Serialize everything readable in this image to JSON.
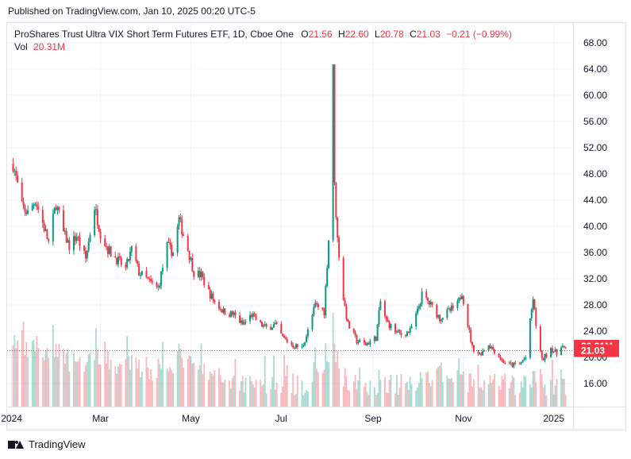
{
  "header": {
    "published": "Published on TradingView.com, Jan 10, 2025 00:20 UTC-5"
  },
  "legend": {
    "symbol": "ProShares Trust Ultra VIX Short Term Futures ETF, 1D, Cboe One",
    "o_label": "O",
    "o_value": "21.56",
    "h_label": "H",
    "h_value": "22.60",
    "l_label": "L",
    "l_value": "20.78",
    "c_label": "C",
    "c_value": "21.03",
    "change": "−0.21 (−0.99%)",
    "vol_label": "Vol",
    "vol_value": "20.31M"
  },
  "footer": {
    "brand": "TradingView"
  },
  "colors": {
    "up": "#089981",
    "down": "#f23645",
    "grid": "#f0f3fa",
    "axis_text": "#131722"
  },
  "chart_data": {
    "type": "candlestick",
    "y_ticks": [
      16,
      20,
      24,
      28,
      32,
      36,
      40,
      44,
      48,
      52,
      56,
      60,
      64,
      68
    ],
    "y_tick_labels": [
      "16.00",
      "20.00",
      "24.00",
      "28.00",
      "32.00",
      "36.00",
      "40.00",
      "44.00",
      "48.00",
      "52.00",
      "56.00",
      "60.00",
      "64.00",
      "68.00"
    ],
    "ylim": [
      12.5,
      71
    ],
    "x_labels": [
      "2024",
      "Mar",
      "May",
      "Jul",
      "Sep",
      "Nov",
      "2025"
    ],
    "x_label_dates": [
      "2024-01-01",
      "2024-03-01",
      "2024-05-01",
      "2024-07-01",
      "2024-09-01",
      "2024-11-01",
      "2025-01-01"
    ],
    "xlim": [
      "2023-12-29",
      "2025-01-14"
    ],
    "last_price_label": "21.03",
    "last_volume_label": "20.31M",
    "price_path": [
      [
        "2024-01-02",
        49.5
      ],
      [
        "2024-01-08",
        43.0
      ],
      [
        "2024-01-12",
        42.0
      ],
      [
        "2024-01-17",
        44.0
      ],
      [
        "2024-01-22",
        40.5
      ],
      [
        "2024-01-26",
        37.5
      ],
      [
        "2024-01-31",
        43.5
      ],
      [
        "2024-02-05",
        39.0
      ],
      [
        "2024-02-09",
        37.0
      ],
      [
        "2024-02-14",
        38.5
      ],
      [
        "2024-02-20",
        35.0
      ],
      [
        "2024-02-26",
        43.0
      ],
      [
        "2024-03-01",
        39.0
      ],
      [
        "2024-03-06",
        36.5
      ],
      [
        "2024-03-12",
        35.0
      ],
      [
        "2024-03-18",
        33.5
      ],
      [
        "2024-03-22",
        36.5
      ],
      [
        "2024-03-27",
        33.0
      ],
      [
        "2024-04-03",
        31.5
      ],
      [
        "2024-04-09",
        30.5
      ],
      [
        "2024-04-15",
        37.0
      ],
      [
        "2024-04-19",
        36.0
      ],
      [
        "2024-04-23",
        41.0
      ],
      [
        "2024-04-29",
        36.5
      ],
      [
        "2024-05-03",
        33.0
      ],
      [
        "2024-05-08",
        32.5
      ],
      [
        "2024-05-13",
        30.0
      ],
      [
        "2024-05-17",
        28.5
      ],
      [
        "2024-05-23",
        27.0
      ],
      [
        "2024-05-30",
        26.5
      ],
      [
        "2024-06-05",
        25.0
      ],
      [
        "2024-06-11",
        26.5
      ],
      [
        "2024-06-17",
        25.0
      ],
      [
        "2024-06-21",
        24.5
      ],
      [
        "2024-06-27",
        25.0
      ],
      [
        "2024-07-02",
        23.0
      ],
      [
        "2024-07-09",
        21.8
      ],
      [
        "2024-07-15",
        21.5
      ],
      [
        "2024-07-19",
        24.0
      ],
      [
        "2024-07-24",
        28.0
      ],
      [
        "2024-07-30",
        27.0
      ],
      [
        "2024-08-02",
        38.0
      ],
      [
        "2024-08-05",
        65.0
      ],
      [
        "2024-08-06",
        46.0
      ],
      [
        "2024-08-08",
        38.0
      ],
      [
        "2024-08-12",
        29.0
      ],
      [
        "2024-08-15",
        25.0
      ],
      [
        "2024-08-21",
        22.5
      ],
      [
        "2024-08-27",
        22.0
      ],
      [
        "2024-09-03",
        23.0
      ],
      [
        "2024-09-06",
        28.5
      ],
      [
        "2024-09-10",
        25.5
      ],
      [
        "2024-09-16",
        24.0
      ],
      [
        "2024-09-20",
        23.5
      ],
      [
        "2024-09-26",
        24.0
      ],
      [
        "2024-10-01",
        27.0
      ],
      [
        "2024-10-04",
        29.5
      ],
      [
        "2024-10-10",
        28.0
      ],
      [
        "2024-10-16",
        26.0
      ],
      [
        "2024-10-22",
        27.0
      ],
      [
        "2024-10-28",
        28.0
      ],
      [
        "2024-10-31",
        30.0
      ],
      [
        "2024-11-04",
        25.0
      ],
      [
        "2024-11-07",
        21.5
      ],
      [
        "2024-11-12",
        20.5
      ],
      [
        "2024-11-18",
        22.0
      ],
      [
        "2024-11-22",
        21.0
      ],
      [
        "2024-11-27",
        19.5
      ],
      [
        "2024-12-03",
        18.8
      ],
      [
        "2024-12-09",
        19.0
      ],
      [
        "2024-12-13",
        20.0
      ],
      [
        "2024-12-18",
        29.0
      ],
      [
        "2024-12-20",
        25.0
      ],
      [
        "2024-12-24",
        19.5
      ],
      [
        "2024-12-30",
        21.5
      ],
      [
        "2025-01-03",
        20.5
      ],
      [
        "2025-01-06",
        22.0
      ],
      [
        "2025-01-09",
        21.03
      ]
    ]
  }
}
